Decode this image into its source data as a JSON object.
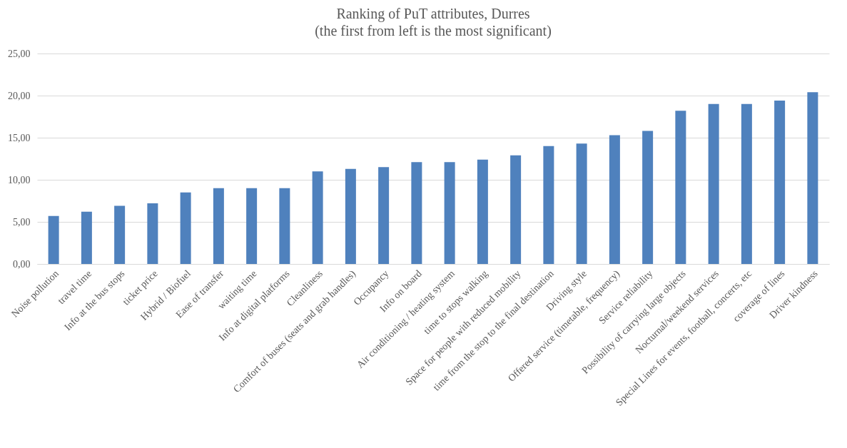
{
  "chart_data": {
    "type": "bar",
    "title": "Ranking  of PuT attributes, Durres",
    "subtitle": "(the first from left is the most significant)",
    "categories": [
      "Noise pollution",
      "travel time",
      "Info at the bus stops",
      "ticket price",
      "Hybrid / Biofuel",
      "Ease of transfer",
      "waiting time",
      "Info at digital platforms",
      "Cleanliness",
      "Comfort of buses (seats and grab handles)",
      "Occupancy",
      "Info on board",
      "Air conditioning / heating system",
      "time to stops walking",
      "Space for people with reduced mobility",
      "time from the stop to the final destination",
      "Driving style",
      "Offered service (timetable, frequency)",
      "Service reliability",
      "Possibility of carrying large objects",
      "Nocturnal/weekend services",
      "Special Lines for events, football, concerts, etc",
      "coverage of lines",
      "Driver kindness"
    ],
    "values": [
      5.7,
      6.2,
      6.9,
      7.2,
      8.5,
      9.0,
      9.0,
      9.0,
      11.0,
      11.3,
      11.5,
      12.1,
      12.1,
      12.4,
      12.9,
      14.0,
      14.3,
      15.3,
      15.8,
      18.2,
      19.0,
      19.0,
      19.4,
      20.4
    ],
    "color": "#4f81bd",
    "ylim": [
      0,
      25
    ],
    "yticks": [
      {
        "value": 0,
        "label": "0,00"
      },
      {
        "value": 5,
        "label": "5,00"
      },
      {
        "value": 10,
        "label": "10,00"
      },
      {
        "value": 15,
        "label": "15,00"
      },
      {
        "value": 20,
        "label": "20,00"
      },
      {
        "value": 25,
        "label": "25,00"
      }
    ],
    "grid": "y"
  }
}
